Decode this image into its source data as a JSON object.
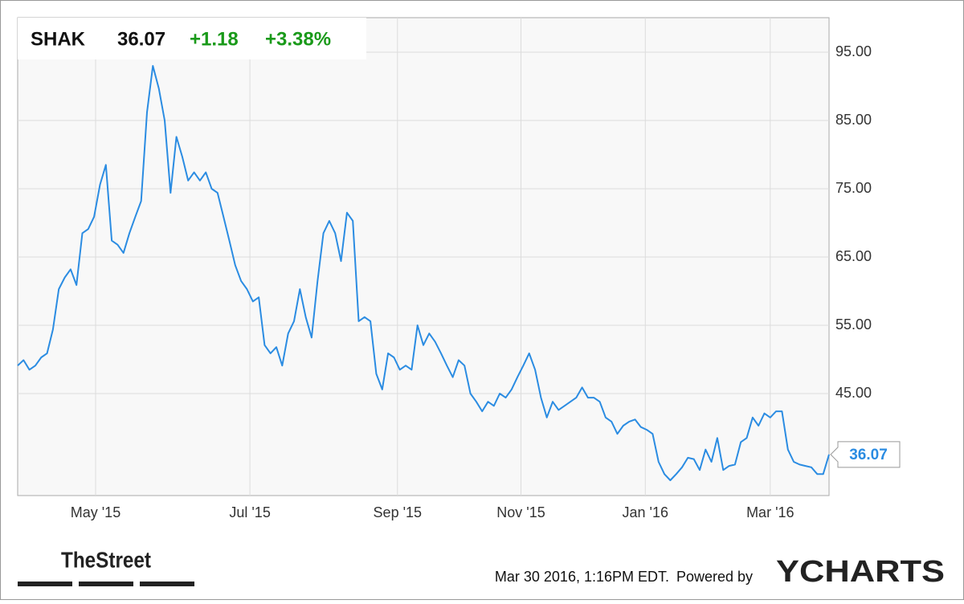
{
  "chart_data": {
    "type": "line",
    "symbol": "SHAK",
    "change": "+1.18",
    "change_pct": "+3.38%",
    "series": [
      {
        "color": "#2b8ce2",
        "values": [
          49.1,
          49.9,
          48.5,
          49.1,
          50.3,
          50.9,
          54.4,
          60.3,
          62,
          63.2,
          60.9,
          68.5,
          69.1,
          70.9,
          75.6,
          78.5,
          67.4,
          66.8,
          65.6,
          68.5,
          70.9,
          73.2,
          86.2,
          93,
          89.7,
          85,
          74.4,
          82.6,
          79.7,
          76.2,
          77.4,
          76.2,
          77.4,
          75,
          74.4,
          70.9,
          67.4,
          63.8,
          61.5,
          60.3,
          58.5,
          59.1,
          52.1,
          50.9,
          51.8,
          49.1,
          53.8,
          55.6,
          60.3,
          56.2,
          53.2,
          61.5,
          68.5,
          70.3,
          68.5,
          64.4,
          71.5,
          70.3,
          55.6,
          56.2,
          55.6,
          47.9,
          45.6,
          50.9,
          50.3,
          48.5,
          49.1,
          48.5,
          55,
          52.1,
          53.8,
          52.6,
          50.9,
          49.1,
          47.4,
          49.9,
          49.1,
          45,
          43.8,
          42.4,
          43.8,
          43.2,
          45,
          44.4,
          45.6,
          47.4,
          49.1,
          50.9,
          48.5,
          44.4,
          41.5,
          43.8,
          42.6,
          43.2,
          43.8,
          44.4,
          45.9,
          44.4,
          44.4,
          43.8,
          41.5,
          40.9,
          39.1,
          40.3,
          40.9,
          41.2,
          40.1,
          39.7,
          39.1,
          35,
          33.2,
          32.3,
          33.2,
          34.2,
          35.6,
          35.4,
          33.8,
          36.8,
          35,
          38.5,
          33.8,
          34.4,
          34.6,
          37.9,
          38.5,
          41.5,
          40.3,
          42.1,
          41.5,
          42.4,
          42.4,
          36.8,
          35,
          34.6,
          34.4,
          34.2,
          33.2,
          33.2,
          36.07
        ]
      }
    ],
    "xlim": [
      0,
      138
    ],
    "xticks": [
      {
        "value": 13.25,
        "label": "May '15"
      },
      {
        "value": 39.5,
        "label": "Jul '15"
      },
      {
        "value": 64.6,
        "label": "Sep '15"
      },
      {
        "value": 85.6,
        "label": "Nov '15"
      },
      {
        "value": 106.75,
        "label": "Jan '16"
      },
      {
        "value": 128,
        "label": "Mar '16"
      }
    ],
    "ylim": [
      30.06,
      100.06
    ],
    "yticks": [
      {
        "value": 45,
        "label": "45.00"
      },
      {
        "value": 55,
        "label": "55.00"
      },
      {
        "value": 65,
        "label": "65.00"
      },
      {
        "value": 75,
        "label": "75.00"
      },
      {
        "value": 85,
        "label": "85.00"
      },
      {
        "value": 95,
        "label": "95.00"
      }
    ],
    "grid": true,
    "source_logo": "TheStreet",
    "timestamp": "Mar 30 2016, 1:16PM EDT.",
    "credit": "Powered by",
    "brand": "YCHARTS"
  }
}
